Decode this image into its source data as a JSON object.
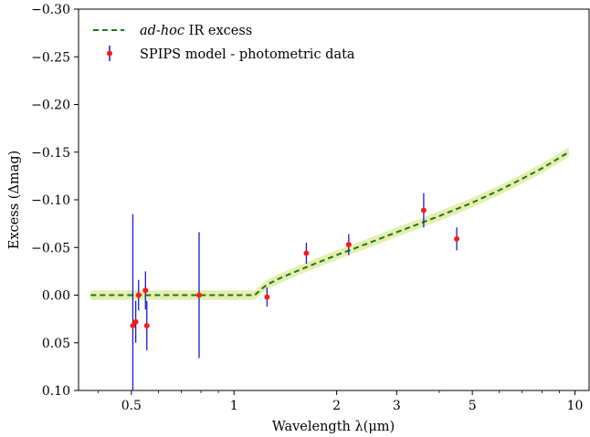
{
  "chart_data": {
    "type": "scatter",
    "xlabel": "Wavelength λ(μm)",
    "ylabel": "Excess (Δmag)",
    "x_scale": "log",
    "xlim": [
      0.35,
      11
    ],
    "ylim": [
      0.1,
      -0.3
    ],
    "y_inverted": true,
    "x_ticks": [
      0.5,
      1,
      2,
      3,
      5,
      10
    ],
    "x_tick_labels": [
      "0.5",
      "1",
      "2",
      "3",
      "5",
      "10"
    ],
    "y_ticks": [
      -0.3,
      -0.25,
      -0.2,
      -0.15,
      -0.1,
      -0.05,
      0.0,
      0.05,
      0.1
    ],
    "y_tick_labels": [
      "−0.30",
      "−0.25",
      "−0.20",
      "−0.15",
      "−0.10",
      "−0.05",
      "0.00",
      "0.05",
      "0.10"
    ],
    "grid": false,
    "legend_position": "top-left",
    "series": [
      {
        "name": "ad-hoc IR excess",
        "name_italic_part": "ad-hoc",
        "name_rest": " IR excess",
        "style": "dashed-line",
        "color": "#1a7a1a",
        "band_color": "#e6eeb0",
        "band_halfwidth": 0.005,
        "x": [
          0.38,
          0.6,
          0.8,
          1.0,
          1.15,
          1.2,
          1.25,
          1.35,
          1.5,
          1.7,
          2.0,
          2.5,
          3.0,
          3.5,
          4.0,
          5.0,
          6.0,
          7.0,
          8.0,
          9.0,
          9.6
        ],
        "y": [
          0.0,
          0.0,
          0.0,
          0.0,
          0.0,
          -0.006,
          -0.011,
          -0.017,
          -0.024,
          -0.032,
          -0.042,
          -0.055,
          -0.066,
          -0.075,
          -0.083,
          -0.097,
          -0.11,
          -0.122,
          -0.133,
          -0.144,
          -0.15
        ]
      },
      {
        "name": "SPIPS model - photometric data",
        "style": "errorbar-points",
        "marker_color": "#ff1a1a",
        "errorbar_color": "#1a1acc",
        "x": [
          0.505,
          0.515,
          0.525,
          0.55,
          0.555,
          0.79,
          1.25,
          1.63,
          2.17,
          3.6,
          4.5
        ],
        "y": [
          0.032,
          0.028,
          0.0,
          -0.005,
          0.032,
          0.0,
          0.002,
          -0.044,
          -0.053,
          -0.089,
          -0.059
        ],
        "yerr": [
          0.117,
          0.022,
          0.016,
          0.02,
          0.026,
          0.066,
          0.01,
          0.011,
          0.011,
          0.018,
          0.012
        ]
      }
    ]
  }
}
